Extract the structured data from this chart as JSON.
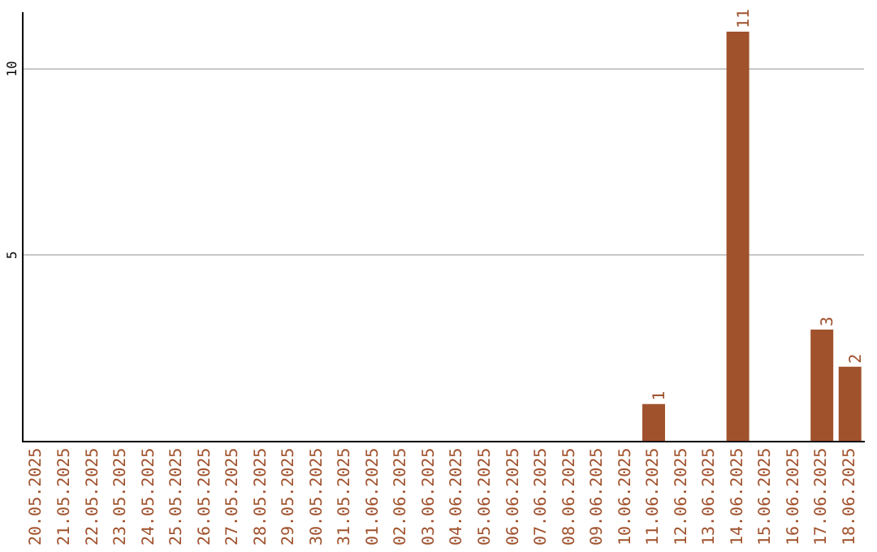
{
  "chart_data": {
    "type": "bar",
    "categories": [
      "20.05.2025",
      "21.05.2025",
      "22.05.2025",
      "23.05.2025",
      "24.05.2025",
      "25.05.2025",
      "26.05.2025",
      "27.05.2025",
      "28.05.2025",
      "29.05.2025",
      "30.05.2025",
      "31.05.2025",
      "01.06.2025",
      "02.06.2025",
      "03.06.2025",
      "04.06.2025",
      "05.06.2025",
      "06.06.2025",
      "07.06.2025",
      "08.06.2025",
      "09.06.2025",
      "10.06.2025",
      "11.06.2025",
      "12.06.2025",
      "13.06.2025",
      "14.06.2025",
      "15.06.2025",
      "16.06.2025",
      "17.06.2025",
      "18.06.2025"
    ],
    "values": [
      0,
      0,
      0,
      0,
      0,
      0,
      0,
      0,
      0,
      0,
      0,
      0,
      0,
      0,
      0,
      0,
      0,
      0,
      0,
      0,
      0,
      0,
      1,
      0,
      0,
      11,
      0,
      0,
      3,
      2
    ],
    "value_labels": [
      null,
      null,
      null,
      null,
      null,
      null,
      null,
      null,
      null,
      null,
      null,
      null,
      null,
      null,
      null,
      null,
      null,
      null,
      null,
      null,
      null,
      null,
      "1",
      null,
      null,
      "11",
      null,
      null,
      "3",
      "2"
    ],
    "color": "#a0522d",
    "ylim": [
      0,
      11.5
    ],
    "yticks": [
      5,
      10
    ],
    "grid": "y",
    "legend": false
  }
}
